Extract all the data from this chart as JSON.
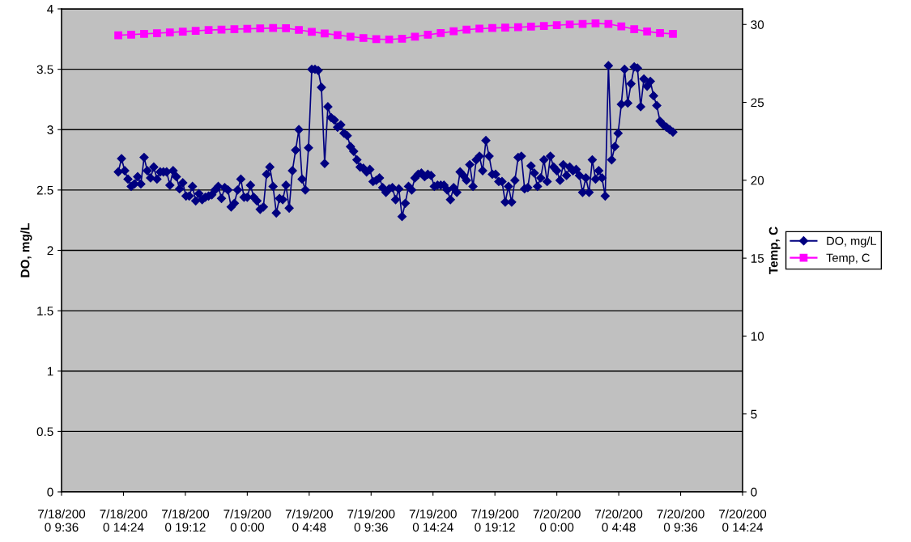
{
  "chart_data": {
    "type": "line",
    "ylabel": "DO, mg/L",
    "y2label": "Temp, C",
    "xlim": [
      "2000-07-18T09:36",
      "2000-07-20T14:24"
    ],
    "xticks": [
      {
        "value": "2000-07-18T09:36",
        "label": "7/18/2000 9:36"
      },
      {
        "value": "2000-07-18T14:24",
        "label": "7/18/2000 14:24"
      },
      {
        "value": "2000-07-18T19:12",
        "label": "7/18/2000 19:12"
      },
      {
        "value": "2000-07-19T00:00",
        "label": "7/19/2000 0:00"
      },
      {
        "value": "2000-07-19T04:48",
        "label": "7/19/2000 4:48"
      },
      {
        "value": "2000-07-19T09:36",
        "label": "7/19/2000 9:36"
      },
      {
        "value": "2000-07-19T14:24",
        "label": "7/19/2000 14:24"
      },
      {
        "value": "2000-07-19T19:12",
        "label": "7/19/2000 19:12"
      },
      {
        "value": "2000-07-20T00:00",
        "label": "7/20/2000 0:00"
      },
      {
        "value": "2000-07-20T04:48",
        "label": "7/20/2000 4:48"
      },
      {
        "value": "2000-07-20T09:36",
        "label": "7/20/2000 9:36"
      },
      {
        "value": "2000-07-20T14:24",
        "label": "7/20/2000 14:24"
      }
    ],
    "ylim": [
      0,
      4
    ],
    "yticks": [
      0,
      0.5,
      1,
      1.5,
      2,
      2.5,
      3,
      3.5,
      4
    ],
    "y2lim": [
      0,
      31
    ],
    "y2ticks": [
      0,
      5,
      10,
      15,
      20,
      25,
      30
    ],
    "grid": "y",
    "legend": "right",
    "series": [
      {
        "name": "DO, mg/L",
        "color": "#000080",
        "marker": "diamond",
        "x": [
          "2000-07-18T14:00",
          "2000-07-18T14:15",
          "2000-07-18T14:30",
          "2000-07-18T14:45",
          "2000-07-18T15:00",
          "2000-07-18T15:15",
          "2000-07-18T15:30",
          "2000-07-18T15:45",
          "2000-07-18T16:00",
          "2000-07-18T16:15",
          "2000-07-18T16:30",
          "2000-07-18T16:45",
          "2000-07-18T17:00",
          "2000-07-18T17:15",
          "2000-07-18T17:30",
          "2000-07-18T17:45",
          "2000-07-18T18:00",
          "2000-07-18T18:15",
          "2000-07-18T18:30",
          "2000-07-18T18:45",
          "2000-07-18T19:00",
          "2000-07-18T19:15",
          "2000-07-18T19:30",
          "2000-07-18T19:45",
          "2000-07-18T20:00",
          "2000-07-18T20:15",
          "2000-07-18T20:30",
          "2000-07-18T20:45",
          "2000-07-18T21:00",
          "2000-07-18T21:15",
          "2000-07-18T21:30",
          "2000-07-18T21:45",
          "2000-07-18T22:00",
          "2000-07-18T22:15",
          "2000-07-18T22:30",
          "2000-07-18T22:45",
          "2000-07-18T23:00",
          "2000-07-18T23:15",
          "2000-07-18T23:30",
          "2000-07-18T23:45",
          "2000-07-19T00:00",
          "2000-07-19T00:15",
          "2000-07-19T00:30",
          "2000-07-19T00:45",
          "2000-07-19T01:00",
          "2000-07-19T01:15",
          "2000-07-19T01:30",
          "2000-07-19T01:45",
          "2000-07-19T02:00",
          "2000-07-19T02:15",
          "2000-07-19T02:30",
          "2000-07-19T02:45",
          "2000-07-19T03:00",
          "2000-07-19T03:15",
          "2000-07-19T03:30",
          "2000-07-19T03:45",
          "2000-07-19T04:00",
          "2000-07-19T04:15",
          "2000-07-19T04:30",
          "2000-07-19T04:45",
          "2000-07-19T05:00",
          "2000-07-19T05:15",
          "2000-07-19T05:30",
          "2000-07-19T05:45",
          "2000-07-19T06:00",
          "2000-07-19T06:15",
          "2000-07-19T06:30",
          "2000-07-19T06:45",
          "2000-07-19T07:00",
          "2000-07-19T07:15",
          "2000-07-19T07:30",
          "2000-07-19T07:45",
          "2000-07-19T08:00",
          "2000-07-19T08:15",
          "2000-07-19T08:30",
          "2000-07-19T08:45",
          "2000-07-19T09:00",
          "2000-07-19T09:15",
          "2000-07-19T09:30",
          "2000-07-19T09:45",
          "2000-07-19T10:00",
          "2000-07-19T10:15",
          "2000-07-19T10:30",
          "2000-07-19T10:45",
          "2000-07-19T11:00",
          "2000-07-19T11:15",
          "2000-07-19T11:30",
          "2000-07-19T11:45",
          "2000-07-19T12:00",
          "2000-07-19T12:15",
          "2000-07-19T12:30",
          "2000-07-19T12:45",
          "2000-07-19T13:00",
          "2000-07-19T13:15",
          "2000-07-19T13:30",
          "2000-07-19T13:45",
          "2000-07-19T14:00",
          "2000-07-19T14:15",
          "2000-07-19T14:30",
          "2000-07-19T14:45",
          "2000-07-19T15:00",
          "2000-07-19T15:15",
          "2000-07-19T15:30",
          "2000-07-19T15:45",
          "2000-07-19T16:00",
          "2000-07-19T16:15",
          "2000-07-19T16:30",
          "2000-07-19T16:45",
          "2000-07-19T17:00",
          "2000-07-19T17:15",
          "2000-07-19T17:30",
          "2000-07-19T17:45",
          "2000-07-19T18:00",
          "2000-07-19T18:15",
          "2000-07-19T18:30",
          "2000-07-19T18:45",
          "2000-07-19T19:00",
          "2000-07-19T19:15",
          "2000-07-19T19:30",
          "2000-07-19T19:45",
          "2000-07-19T20:00",
          "2000-07-19T20:15",
          "2000-07-19T20:30",
          "2000-07-19T20:45",
          "2000-07-19T21:00",
          "2000-07-19T21:15",
          "2000-07-19T21:30",
          "2000-07-19T21:45",
          "2000-07-19T22:00",
          "2000-07-19T22:15",
          "2000-07-19T22:30",
          "2000-07-19T22:45",
          "2000-07-19T23:00",
          "2000-07-19T23:15",
          "2000-07-19T23:30",
          "2000-07-19T23:45",
          "2000-07-20T00:00",
          "2000-07-20T00:15",
          "2000-07-20T00:30",
          "2000-07-20T00:45",
          "2000-07-20T01:00",
          "2000-07-20T01:15",
          "2000-07-20T01:30",
          "2000-07-20T01:45",
          "2000-07-20T02:00",
          "2000-07-20T02:15",
          "2000-07-20T02:30",
          "2000-07-20T02:45",
          "2000-07-20T03:00",
          "2000-07-20T03:15",
          "2000-07-20T03:30",
          "2000-07-20T03:45",
          "2000-07-20T04:00",
          "2000-07-20T04:15",
          "2000-07-20T04:30",
          "2000-07-20T04:45",
          "2000-07-20T05:00",
          "2000-07-20T05:15",
          "2000-07-20T05:30",
          "2000-07-20T05:45",
          "2000-07-20T06:00",
          "2000-07-20T06:15",
          "2000-07-20T06:30",
          "2000-07-20T06:45",
          "2000-07-20T07:00",
          "2000-07-20T07:15",
          "2000-07-20T07:30",
          "2000-07-20T07:45",
          "2000-07-20T08:00",
          "2000-07-20T08:15",
          "2000-07-20T08:30",
          "2000-07-20T08:45",
          "2000-07-20T09:00"
        ],
        "values": [
          2.65,
          2.76,
          2.66,
          2.59,
          2.53,
          2.55,
          2.61,
          2.55,
          2.77,
          2.66,
          2.6,
          2.69,
          2.59,
          2.65,
          2.65,
          2.65,
          2.54,
          2.66,
          2.61,
          2.51,
          2.56,
          2.45,
          2.45,
          2.53,
          2.41,
          2.47,
          2.42,
          2.44,
          2.45,
          2.46,
          2.5,
          2.53,
          2.43,
          2.52,
          2.5,
          2.36,
          2.39,
          2.5,
          2.59,
          2.44,
          2.44,
          2.54,
          2.44,
          2.41,
          2.34,
          2.36,
          2.63,
          2.69,
          2.53,
          2.31,
          2.43,
          2.42,
          2.54,
          2.35,
          2.66,
          2.83,
          3.0,
          2.59,
          2.5,
          2.85,
          3.5,
          3.5,
          3.49,
          3.35,
          2.72,
          3.19,
          3.1,
          3.08,
          3.02,
          3.04,
          2.97,
          2.95,
          2.86,
          2.82,
          2.75,
          2.69,
          2.68,
          2.65,
          2.67,
          2.57,
          2.58,
          2.6,
          2.52,
          2.48,
          2.51,
          2.52,
          2.42,
          2.51,
          2.28,
          2.39,
          2.53,
          2.5,
          2.6,
          2.63,
          2.64,
          2.61,
          2.63,
          2.62,
          2.53,
          2.54,
          2.54,
          2.54,
          2.5,
          2.42,
          2.52,
          2.48,
          2.65,
          2.62,
          2.58,
          2.71,
          2.53,
          2.75,
          2.78,
          2.66,
          2.91,
          2.78,
          2.63,
          2.63,
          2.57,
          2.57,
          2.4,
          2.53,
          2.4,
          2.58,
          2.77,
          2.78,
          2.51,
          2.52,
          2.7,
          2.64,
          2.53,
          2.6,
          2.75,
          2.57,
          2.78,
          2.69,
          2.66,
          2.58,
          2.71,
          2.62,
          2.69,
          2.66,
          2.67,
          2.62,
          2.48,
          2.6,
          2.48,
          2.75,
          2.59,
          2.66,
          2.6,
          2.45,
          3.53,
          2.75,
          2.86,
          2.97,
          3.21,
          3.5,
          3.22,
          3.38,
          3.52,
          3.51,
          3.19,
          3.42,
          3.36,
          3.4,
          3.28,
          3.2,
          3.07,
          3.04,
          3.02,
          3.0,
          2.98
        ]
      },
      {
        "name": "Temp, C",
        "color": "#ff00ff",
        "marker": "square",
        "axis": "y2",
        "x": [
          "2000-07-18T14:00",
          "2000-07-18T15:00",
          "2000-07-18T16:00",
          "2000-07-18T17:00",
          "2000-07-18T18:00",
          "2000-07-18T19:00",
          "2000-07-18T20:00",
          "2000-07-18T21:00",
          "2000-07-18T22:00",
          "2000-07-18T23:00",
          "2000-07-19T00:00",
          "2000-07-19T01:00",
          "2000-07-19T02:00",
          "2000-07-19T03:00",
          "2000-07-19T04:00",
          "2000-07-19T05:00",
          "2000-07-19T06:00",
          "2000-07-19T07:00",
          "2000-07-19T08:00",
          "2000-07-19T09:00",
          "2000-07-19T10:00",
          "2000-07-19T11:00",
          "2000-07-19T12:00",
          "2000-07-19T13:00",
          "2000-07-19T14:00",
          "2000-07-19T15:00",
          "2000-07-19T16:00",
          "2000-07-19T17:00",
          "2000-07-19T18:00",
          "2000-07-19T19:00",
          "2000-07-19T20:00",
          "2000-07-19T21:00",
          "2000-07-19T22:00",
          "2000-07-19T23:00",
          "2000-07-20T00:00",
          "2000-07-20T01:00",
          "2000-07-20T02:00",
          "2000-07-20T03:00",
          "2000-07-20T04:00",
          "2000-07-20T05:00",
          "2000-07-20T06:00",
          "2000-07-20T07:00",
          "2000-07-20T08:00",
          "2000-07-20T09:00"
        ],
        "values": [
          29.31,
          29.35,
          29.4,
          29.44,
          29.49,
          29.54,
          29.59,
          29.64,
          29.67,
          29.7,
          29.72,
          29.75,
          29.77,
          29.76,
          29.65,
          29.53,
          29.42,
          29.32,
          29.22,
          29.13,
          29.06,
          29.04,
          29.09,
          29.22,
          29.34,
          29.45,
          29.56,
          29.67,
          29.73,
          29.77,
          29.8,
          29.82,
          29.86,
          29.9,
          29.95,
          30.0,
          30.03,
          30.07,
          30.03,
          29.88,
          29.7,
          29.55,
          29.45,
          29.4
        ]
      }
    ]
  }
}
